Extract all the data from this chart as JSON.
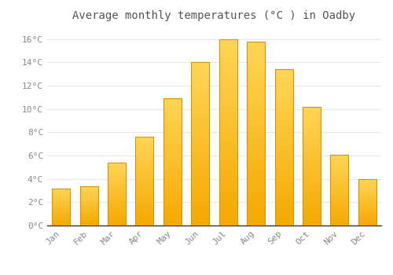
{
  "title": "Average monthly temperatures (°C ) in Oadby",
  "months": [
    "Jan",
    "Feb",
    "Mar",
    "Apr",
    "May",
    "Jun",
    "Jul",
    "Aug",
    "Sep",
    "Oct",
    "Nov",
    "Dec"
  ],
  "temperatures": [
    3.2,
    3.4,
    5.4,
    7.6,
    10.9,
    14.0,
    16.0,
    15.8,
    13.4,
    10.2,
    6.1,
    4.0
  ],
  "bar_color_bottom": "#F5A800",
  "bar_color_top": "#FFD555",
  "bar_edge_color": "#E09000",
  "ylim": [
    0,
    17
  ],
  "yticks": [
    0,
    2,
    4,
    6,
    8,
    10,
    12,
    14,
    16
  ],
  "background_color": "#FFFFFF",
  "grid_color": "#E8E8E8",
  "title_fontsize": 10,
  "tick_fontsize": 8,
  "tick_label_color": "#888888",
  "title_color": "#555555",
  "bar_width": 0.65
}
